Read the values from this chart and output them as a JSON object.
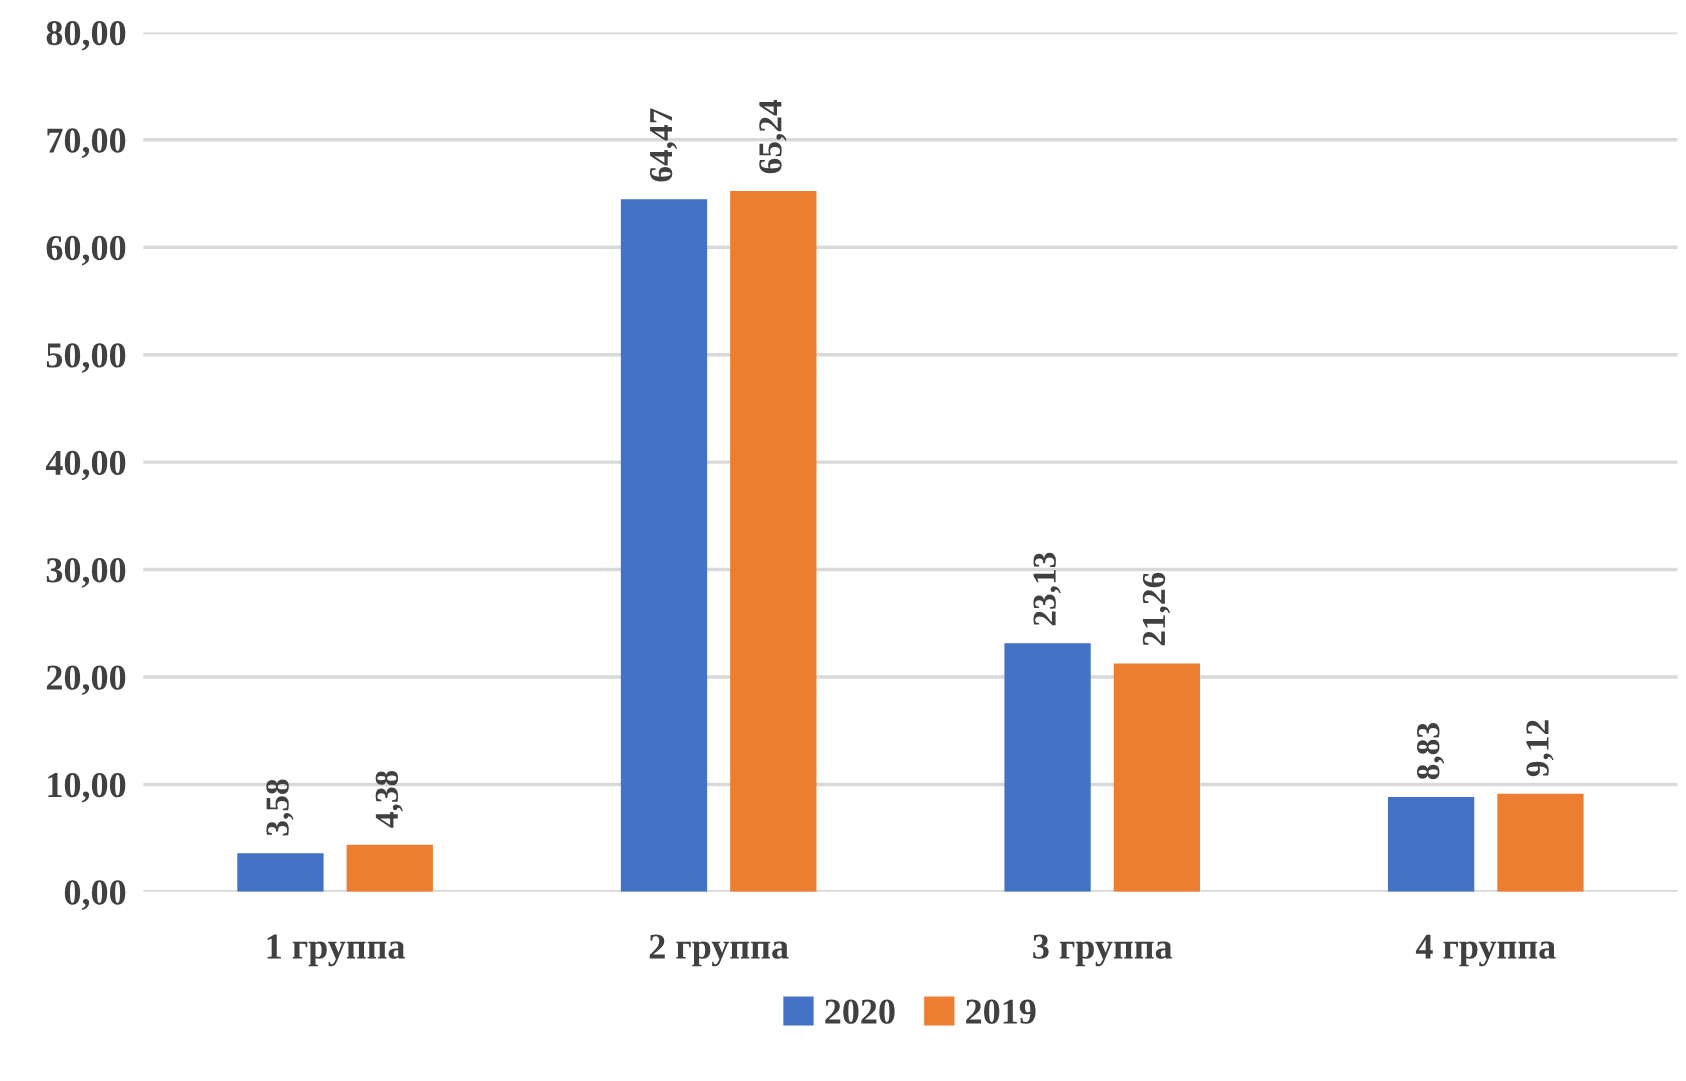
{
  "chart_data": {
    "type": "bar",
    "categories": [
      "1 группа",
      "2 группа",
      "3 группа",
      "4 группа"
    ],
    "series": [
      {
        "name": "2020",
        "color": "#4472c4",
        "values": [
          3.58,
          64.47,
          23.13,
          8.83
        ],
        "value_labels": [
          "3,58",
          "64,47",
          "23,13",
          "8,83"
        ]
      },
      {
        "name": "2019",
        "color": "#ed7d31",
        "values": [
          4.38,
          65.24,
          21.26,
          9.12
        ],
        "value_labels": [
          "4,38",
          "65,24",
          "21,26",
          "9,12"
        ]
      }
    ],
    "ylim": [
      0,
      80
    ],
    "yticks": [
      {
        "value": 0,
        "label": "0,00"
      },
      {
        "value": 10,
        "label": "10,00"
      },
      {
        "value": 20,
        "label": "20,00"
      },
      {
        "value": 30,
        "label": "30,00"
      },
      {
        "value": 40,
        "label": "40,00"
      },
      {
        "value": 50,
        "label": "50,00"
      },
      {
        "value": 60,
        "label": "60,00"
      },
      {
        "value": 70,
        "label": "70,00"
      },
      {
        "value": 80,
        "label": "80,00"
      }
    ],
    "grid": "y",
    "legend": "bottom"
  }
}
